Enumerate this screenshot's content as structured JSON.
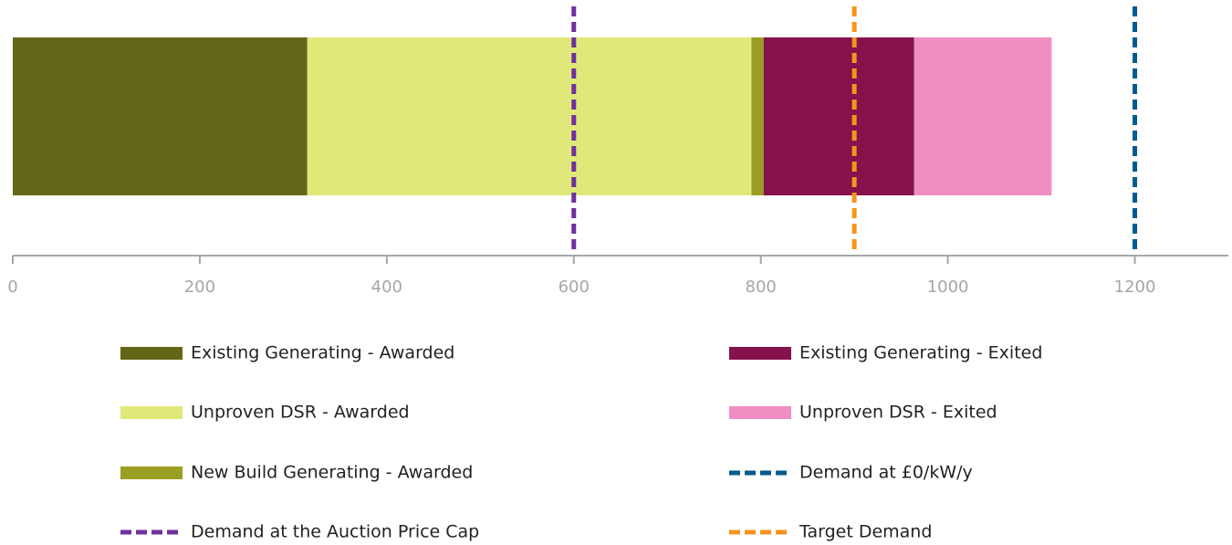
{
  "chart_data": {
    "type": "stacked-bar-horizontal",
    "categories": [
      null
    ],
    "series": [
      {
        "name": "Existing Generating - Awarded",
        "color": "#636617",
        "values": [
          315
        ]
      },
      {
        "name": "Unproven DSR - Awarded",
        "color": "#e0e87a",
        "values": [
          475
        ]
      },
      {
        "name": "New Build Generating - Awarded",
        "color": "#9a9e23",
        "values": [
          13
        ]
      },
      {
        "name": "Existing Generating - Exited",
        "color": "#85124b",
        "values": [
          161
        ]
      },
      {
        "name": "Unproven DSR - Exited",
        "color": "#f08dc2",
        "values": [
          147
        ]
      }
    ],
    "reference_lines": [
      {
        "name": "Demand at the Auction Price Cap",
        "color": "#7030a0",
        "value": 600
      },
      {
        "name": "Target Demand",
        "color": "#f7941d",
        "value": 900
      },
      {
        "name": "Demand at £0/kW/y",
        "color": "#005a8c",
        "value": 1200
      }
    ],
    "xlim": [
      0,
      1300
    ],
    "xticks": [
      0,
      200,
      400,
      600,
      800,
      1000,
      1200
    ]
  }
}
